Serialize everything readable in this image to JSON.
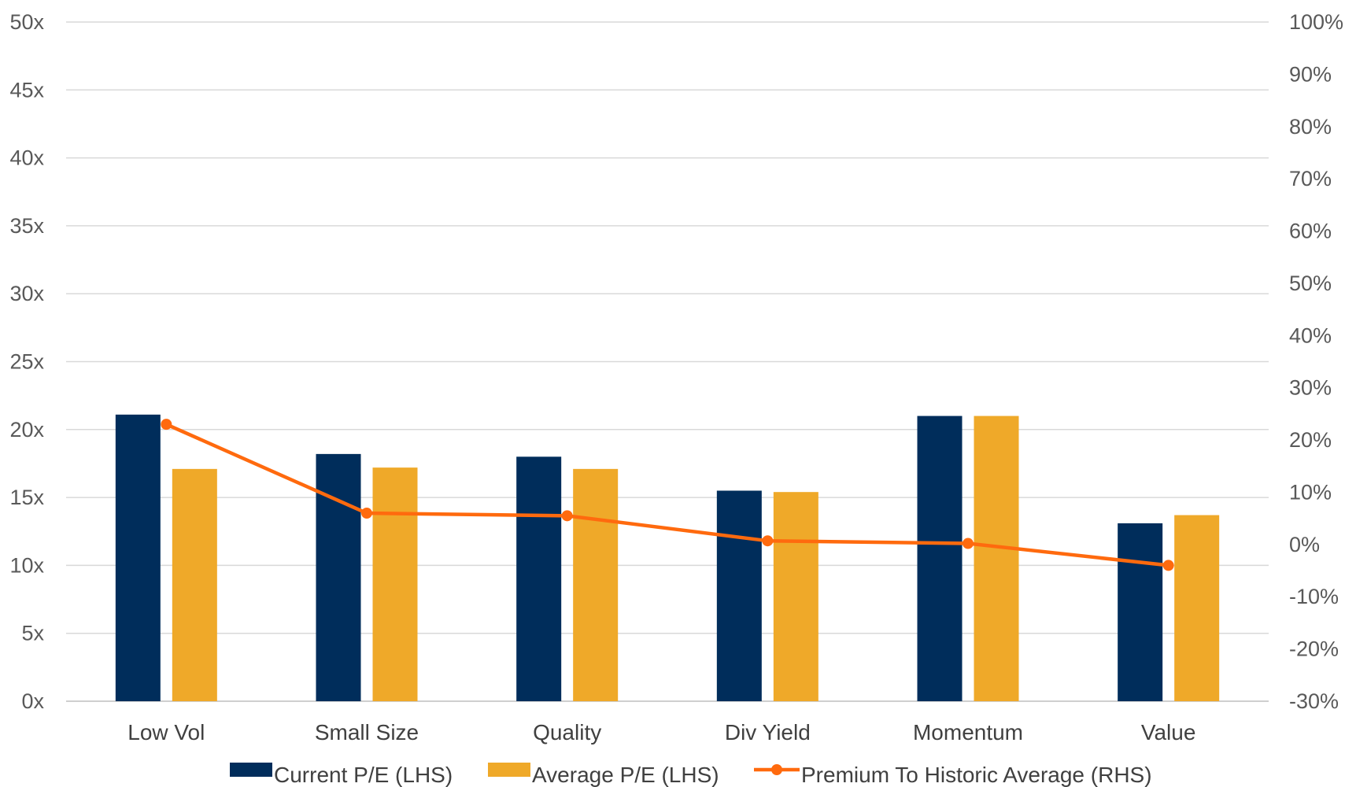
{
  "chart_data": {
    "type": "bar",
    "title": "",
    "xlabel": "",
    "ylabel": "",
    "categories": [
      "Low Vol",
      "Small Size",
      "Quality",
      "Div Yield",
      "Momentum",
      "Value"
    ],
    "series": [
      {
        "name": "Current P/E (LHS)",
        "type": "bar",
        "axis": "left",
        "color": "#002D5B",
        "values": [
          21.1,
          18.2,
          18.0,
          15.5,
          21.0,
          13.1
        ]
      },
      {
        "name": "Average P/E (LHS)",
        "type": "bar",
        "axis": "left",
        "color": "#EFA929",
        "values": [
          17.1,
          17.2,
          17.1,
          15.4,
          21.0,
          13.7
        ]
      },
      {
        "name": "Premium To Historic Average (RHS)",
        "type": "line",
        "axis": "right",
        "color": "#FF6A0E",
        "values": [
          23,
          6,
          5.5,
          0.7,
          0.2,
          -4
        ]
      }
    ],
    "y_left": {
      "range": [
        0,
        50
      ],
      "ticks": [
        0,
        5,
        10,
        15,
        20,
        25,
        30,
        35,
        40,
        45,
        50
      ],
      "tick_labels": [
        "0x",
        "5x",
        "10x",
        "15x",
        "20x",
        "25x",
        "30x",
        "35x",
        "40x",
        "45x",
        "50x"
      ]
    },
    "y_right": {
      "range": [
        -30,
        100
      ],
      "ticks": [
        -30,
        -20,
        -10,
        0,
        10,
        20,
        30,
        40,
        50,
        60,
        70,
        80,
        90,
        100
      ],
      "tick_labels": [
        "-30%",
        "-20%",
        "-10%",
        "0%",
        "10%",
        "20%",
        "30%",
        "40%",
        "50%",
        "60%",
        "70%",
        "80%",
        "90%",
        "100%"
      ]
    },
    "grid": true,
    "grid_color": "#D9D9D9",
    "legend_position": "bottom"
  }
}
